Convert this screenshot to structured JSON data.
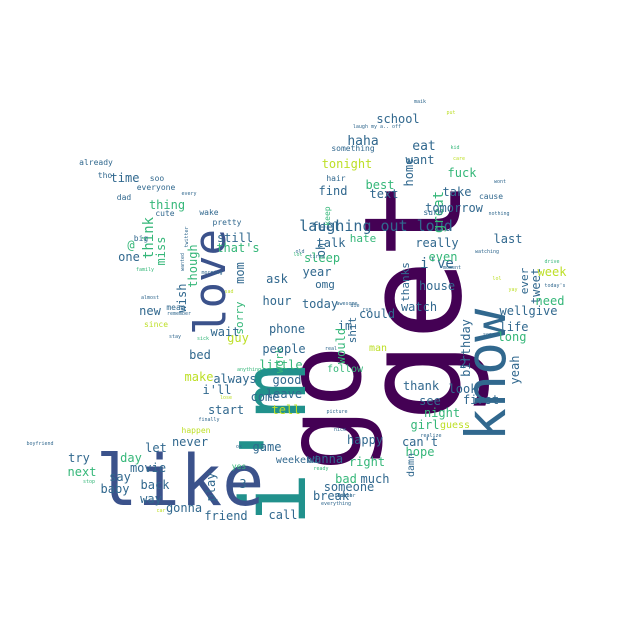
{
  "words": [
    {
      "text": "go",
      "color": "#440154"
    },
    {
      "text": "get",
      "color": "#440154"
    },
    {
      "text": "i'm",
      "color": "#21918c"
    },
    {
      "text": "like",
      "color": "#3b528b"
    },
    {
      "text": "know",
      "color": "#31688e"
    },
    {
      "text": "love",
      "color": "#3b528b"
    },
    {
      "text": "laughing out loud",
      "color": "#31688e"
    },
    {
      "text": "school",
      "color": "#31688e"
    },
    {
      "text": "haha",
      "color": "#31688e"
    },
    {
      "text": "eat",
      "color": "#31688e"
    },
    {
      "text": "home",
      "color": "#31688e"
    },
    {
      "text": "want",
      "color": "#31688e"
    },
    {
      "text": "tonight",
      "color": "#bddf26"
    },
    {
      "text": "fuck",
      "color": "#35b779"
    },
    {
      "text": "best",
      "color": "#35b779"
    },
    {
      "text": "great",
      "color": "#35b779"
    },
    {
      "text": "take",
      "color": "#31688e"
    },
    {
      "text": "text",
      "color": "#31688e"
    },
    {
      "text": "find",
      "color": "#31688e"
    },
    {
      "text": "tomorrow",
      "color": "#31688e"
    },
    {
      "text": "feel",
      "color": "#31688e"
    },
    {
      "text": "hate",
      "color": "#35b779"
    },
    {
      "text": "talk",
      "color": "#31688e"
    },
    {
      "text": "really",
      "color": "#31688e"
    },
    {
      "text": "last",
      "color": "#31688e"
    },
    {
      "text": "i've",
      "color": "#31688e"
    },
    {
      "text": "even",
      "color": "#35b779"
    },
    {
      "text": "oh",
      "color": "#31688e"
    },
    {
      "text": "sleep",
      "color": "#35b779"
    },
    {
      "text": "thanks",
      "color": "#31688e"
    },
    {
      "text": "house",
      "color": "#31688e"
    },
    {
      "text": "ever",
      "color": "#31688e"
    },
    {
      "text": "tweet",
      "color": "#31688e"
    },
    {
      "text": "week",
      "color": "#bddf26"
    },
    {
      "text": "need",
      "color": "#35b779"
    },
    {
      "text": "year",
      "color": "#31688e"
    },
    {
      "text": "omg",
      "color": "#31688e"
    },
    {
      "text": "today",
      "color": "#31688e"
    },
    {
      "text": "could",
      "color": "#31688e"
    },
    {
      "text": "watch",
      "color": "#31688e"
    },
    {
      "text": "birthday",
      "color": "#31688e"
    },
    {
      "text": "well",
      "color": "#31688e"
    },
    {
      "text": "give",
      "color": "#31688e"
    },
    {
      "text": "life",
      "color": "#31688e"
    },
    {
      "text": "long",
      "color": "#35b779"
    },
    {
      "text": "yeah",
      "color": "#31688e"
    },
    {
      "text": "im",
      "color": "#31688e"
    },
    {
      "text": "shit",
      "color": "#31688e"
    },
    {
      "text": "would",
      "color": "#35b779"
    },
    {
      "text": "2",
      "color": "#31688e"
    },
    {
      "text": "look",
      "color": "#31688e"
    },
    {
      "text": "thank",
      "color": "#31688e"
    },
    {
      "text": "see",
      "color": "#31688e"
    },
    {
      "text": "first",
      "color": "#31688e"
    },
    {
      "text": "night",
      "color": "#35b779"
    },
    {
      "text": "girl",
      "color": "#35b779"
    },
    {
      "text": "guess",
      "color": "#bddf26"
    },
    {
      "text": "can't",
      "color": "#31688e"
    },
    {
      "text": "hope",
      "color": "#35b779"
    },
    {
      "text": "happy",
      "color": "#31688e"
    },
    {
      "text": "right",
      "color": "#35b779"
    },
    {
      "text": "bad",
      "color": "#35b779"
    },
    {
      "text": "much",
      "color": "#31688e"
    },
    {
      "text": "wanna",
      "color": "#31688e"
    },
    {
      "text": "someone",
      "color": "#31688e"
    },
    {
      "text": "break",
      "color": "#31688e"
    },
    {
      "text": "follow",
      "color": "#35b779"
    },
    {
      "text": "man",
      "color": "#bddf26"
    },
    {
      "text": "damn",
      "color": "#31688e"
    },
    {
      "text": "time",
      "color": "#31688e"
    },
    {
      "text": "thing",
      "color": "#35b779"
    },
    {
      "text": "think",
      "color": "#35b779"
    },
    {
      "text": "miss",
      "color": "#35b779"
    },
    {
      "text": "wish",
      "color": "#31688e"
    },
    {
      "text": "though",
      "color": "#35b779"
    },
    {
      "text": "one",
      "color": "#31688e"
    },
    {
      "text": "new",
      "color": "#31688e"
    },
    {
      "text": "still",
      "color": "#31688e"
    },
    {
      "text": "that's",
      "color": "#35b779"
    },
    {
      "text": "mom",
      "color": "#31688e"
    },
    {
      "text": "sorry",
      "color": "#35b779"
    },
    {
      "text": "guy",
      "color": "#bddf26"
    },
    {
      "text": "wait",
      "color": "#31688e"
    },
    {
      "text": "work",
      "color": "#35b779"
    },
    {
      "text": "ask",
      "color": "#31688e"
    },
    {
      "text": "hour",
      "color": "#31688e"
    },
    {
      "text": "phone",
      "color": "#31688e"
    },
    {
      "text": "people",
      "color": "#31688e"
    },
    {
      "text": "little",
      "color": "#35b779"
    },
    {
      "text": "bed",
      "color": "#31688e"
    },
    {
      "text": "make",
      "color": "#bddf26"
    },
    {
      "text": "i'll",
      "color": "#31688e"
    },
    {
      "text": "always",
      "color": "#31688e"
    },
    {
      "text": "good",
      "color": "#31688e"
    },
    {
      "text": "come",
      "color": "#31688e"
    },
    {
      "text": "leave",
      "color": "#31688e"
    },
    {
      "text": "start",
      "color": "#31688e"
    },
    {
      "text": "tell",
      "color": "#bddf26"
    },
    {
      "text": "never",
      "color": "#31688e"
    },
    {
      "text": "game",
      "color": "#31688e"
    },
    {
      "text": "weekend",
      "color": "#31688e"
    },
    {
      "text": "let",
      "color": "#31688e"
    },
    {
      "text": "day",
      "color": "#35b779"
    },
    {
      "text": "try",
      "color": "#31688e"
    },
    {
      "text": "next",
      "color": "#35b779"
    },
    {
      "text": "movie",
      "color": "#31688e"
    },
    {
      "text": "say",
      "color": "#31688e"
    },
    {
      "text": "baby",
      "color": "#31688e"
    },
    {
      "text": "back",
      "color": "#31688e"
    },
    {
      "text": "way",
      "color": "#31688e"
    },
    {
      "text": "play",
      "color": "#31688e"
    },
    {
      "text": "gonna",
      "color": "#31688e"
    },
    {
      "text": "friend",
      "color": "#31688e"
    },
    {
      "text": "call",
      "color": "#31688e"
    },
    {
      "text": "3",
      "color": "#31688e"
    },
    {
      "text": "yes",
      "color": "#35b779"
    },
    {
      "text": "already",
      "color": "#31688e"
    },
    {
      "text": "tho",
      "color": "#31688e"
    },
    {
      "text": "soo",
      "color": "#31688e"
    },
    {
      "text": "everyone",
      "color": "#31688e"
    },
    {
      "text": "dad",
      "color": "#31688e"
    },
    {
      "text": "wake",
      "color": "#31688e"
    },
    {
      "text": "cute",
      "color": "#31688e"
    },
    {
      "text": "pretty",
      "color": "#31688e"
    },
    {
      "text": "big",
      "color": "#31688e"
    },
    {
      "text": "@",
      "color": "#35b779"
    },
    {
      "text": "mean",
      "color": "#31688e"
    },
    {
      "text": "since",
      "color": "#bddf26"
    },
    {
      "text": "happen",
      "color": "#bddf26"
    },
    {
      "text": "hair",
      "color": "#31688e"
    },
    {
      "text": "keep",
      "color": "#35b779"
    },
    {
      "text": "something",
      "color": "#31688e"
    },
    {
      "text": "sure",
      "color": "#31688e"
    },
    {
      "text": "cause",
      "color": "#31688e"
    },
    {
      "text": "boyfriend",
      "color": "#31688e"
    },
    {
      "text": "finally",
      "color": "#31688e"
    },
    {
      "text": "stop",
      "color": "#35b779"
    },
    {
      "text": "car",
      "color": "#bddf26"
    },
    {
      "text": "ready",
      "color": "#35b779"
    },
    {
      "text": "everything",
      "color": "#31688e"
    },
    {
      "text": "bitch",
      "color": "#31688e"
    },
    {
      "text": "picture",
      "color": "#31688e"
    },
    {
      "text": "nice",
      "color": "#31688e"
    },
    {
      "text": "ok",
      "color": "#31688e"
    },
    {
      "text": "sick",
      "color": "#35b779"
    },
    {
      "text": "stay",
      "color": "#31688e"
    },
    {
      "text": "remember",
      "color": "#31688e"
    },
    {
      "text": "morning",
      "color": "#31688e"
    },
    {
      "text": "almost",
      "color": "#31688e"
    },
    {
      "text": "family",
      "color": "#35b779"
    },
    {
      "text": "wanted",
      "color": "#31688e"
    },
    {
      "text": "twitter",
      "color": "#31688e"
    },
    {
      "text": "every",
      "color": "#31688e"
    },
    {
      "text": "drive",
      "color": "#35b779"
    },
    {
      "text": "nothing",
      "color": "#31688e"
    },
    {
      "text": "moment",
      "color": "#31688e"
    },
    {
      "text": "realize",
      "color": "#31688e"
    },
    {
      "text": "brother",
      "color": "#31688e"
    },
    {
      "text": "laugh my a.. off",
      "color": "#31688e"
    },
    {
      "text": "maik",
      "color": "#31688e"
    },
    {
      "text": "put",
      "color": "#bddf26"
    },
    {
      "text": "kid",
      "color": "#35b779"
    },
    {
      "text": "care",
      "color": "#bddf26"
    },
    {
      "text": "real",
      "color": "#31688e"
    },
    {
      "text": "run",
      "color": "#31688e"
    },
    {
      "text": "anything",
      "color": "#35b779"
    },
    {
      "text": "lose",
      "color": "#bddf26"
    },
    {
      "text": "sad",
      "color": "#bddf26"
    },
    {
      "text": "lot",
      "color": "#35b779"
    },
    {
      "text": "tired",
      "color": "#31688e"
    },
    {
      "text": "song",
      "color": "#31688e"
    },
    {
      "text": "die",
      "color": "#31688e"
    },
    {
      "text": "awesome",
      "color": "#31688e"
    },
    {
      "text": "yay",
      "color": "#bddf26"
    },
    {
      "text": "lol",
      "color": "#bddf26"
    },
    {
      "text": "watching",
      "color": "#31688e"
    },
    {
      "text": "today's",
      "color": "#31688e"
    },
    {
      "text": "wont",
      "color": "#31688e"
    },
    {
      "text": "old",
      "color": "#31688e"
    },
    {
      "text": "yo",
      "color": "#bddf26"
    }
  ]
}
